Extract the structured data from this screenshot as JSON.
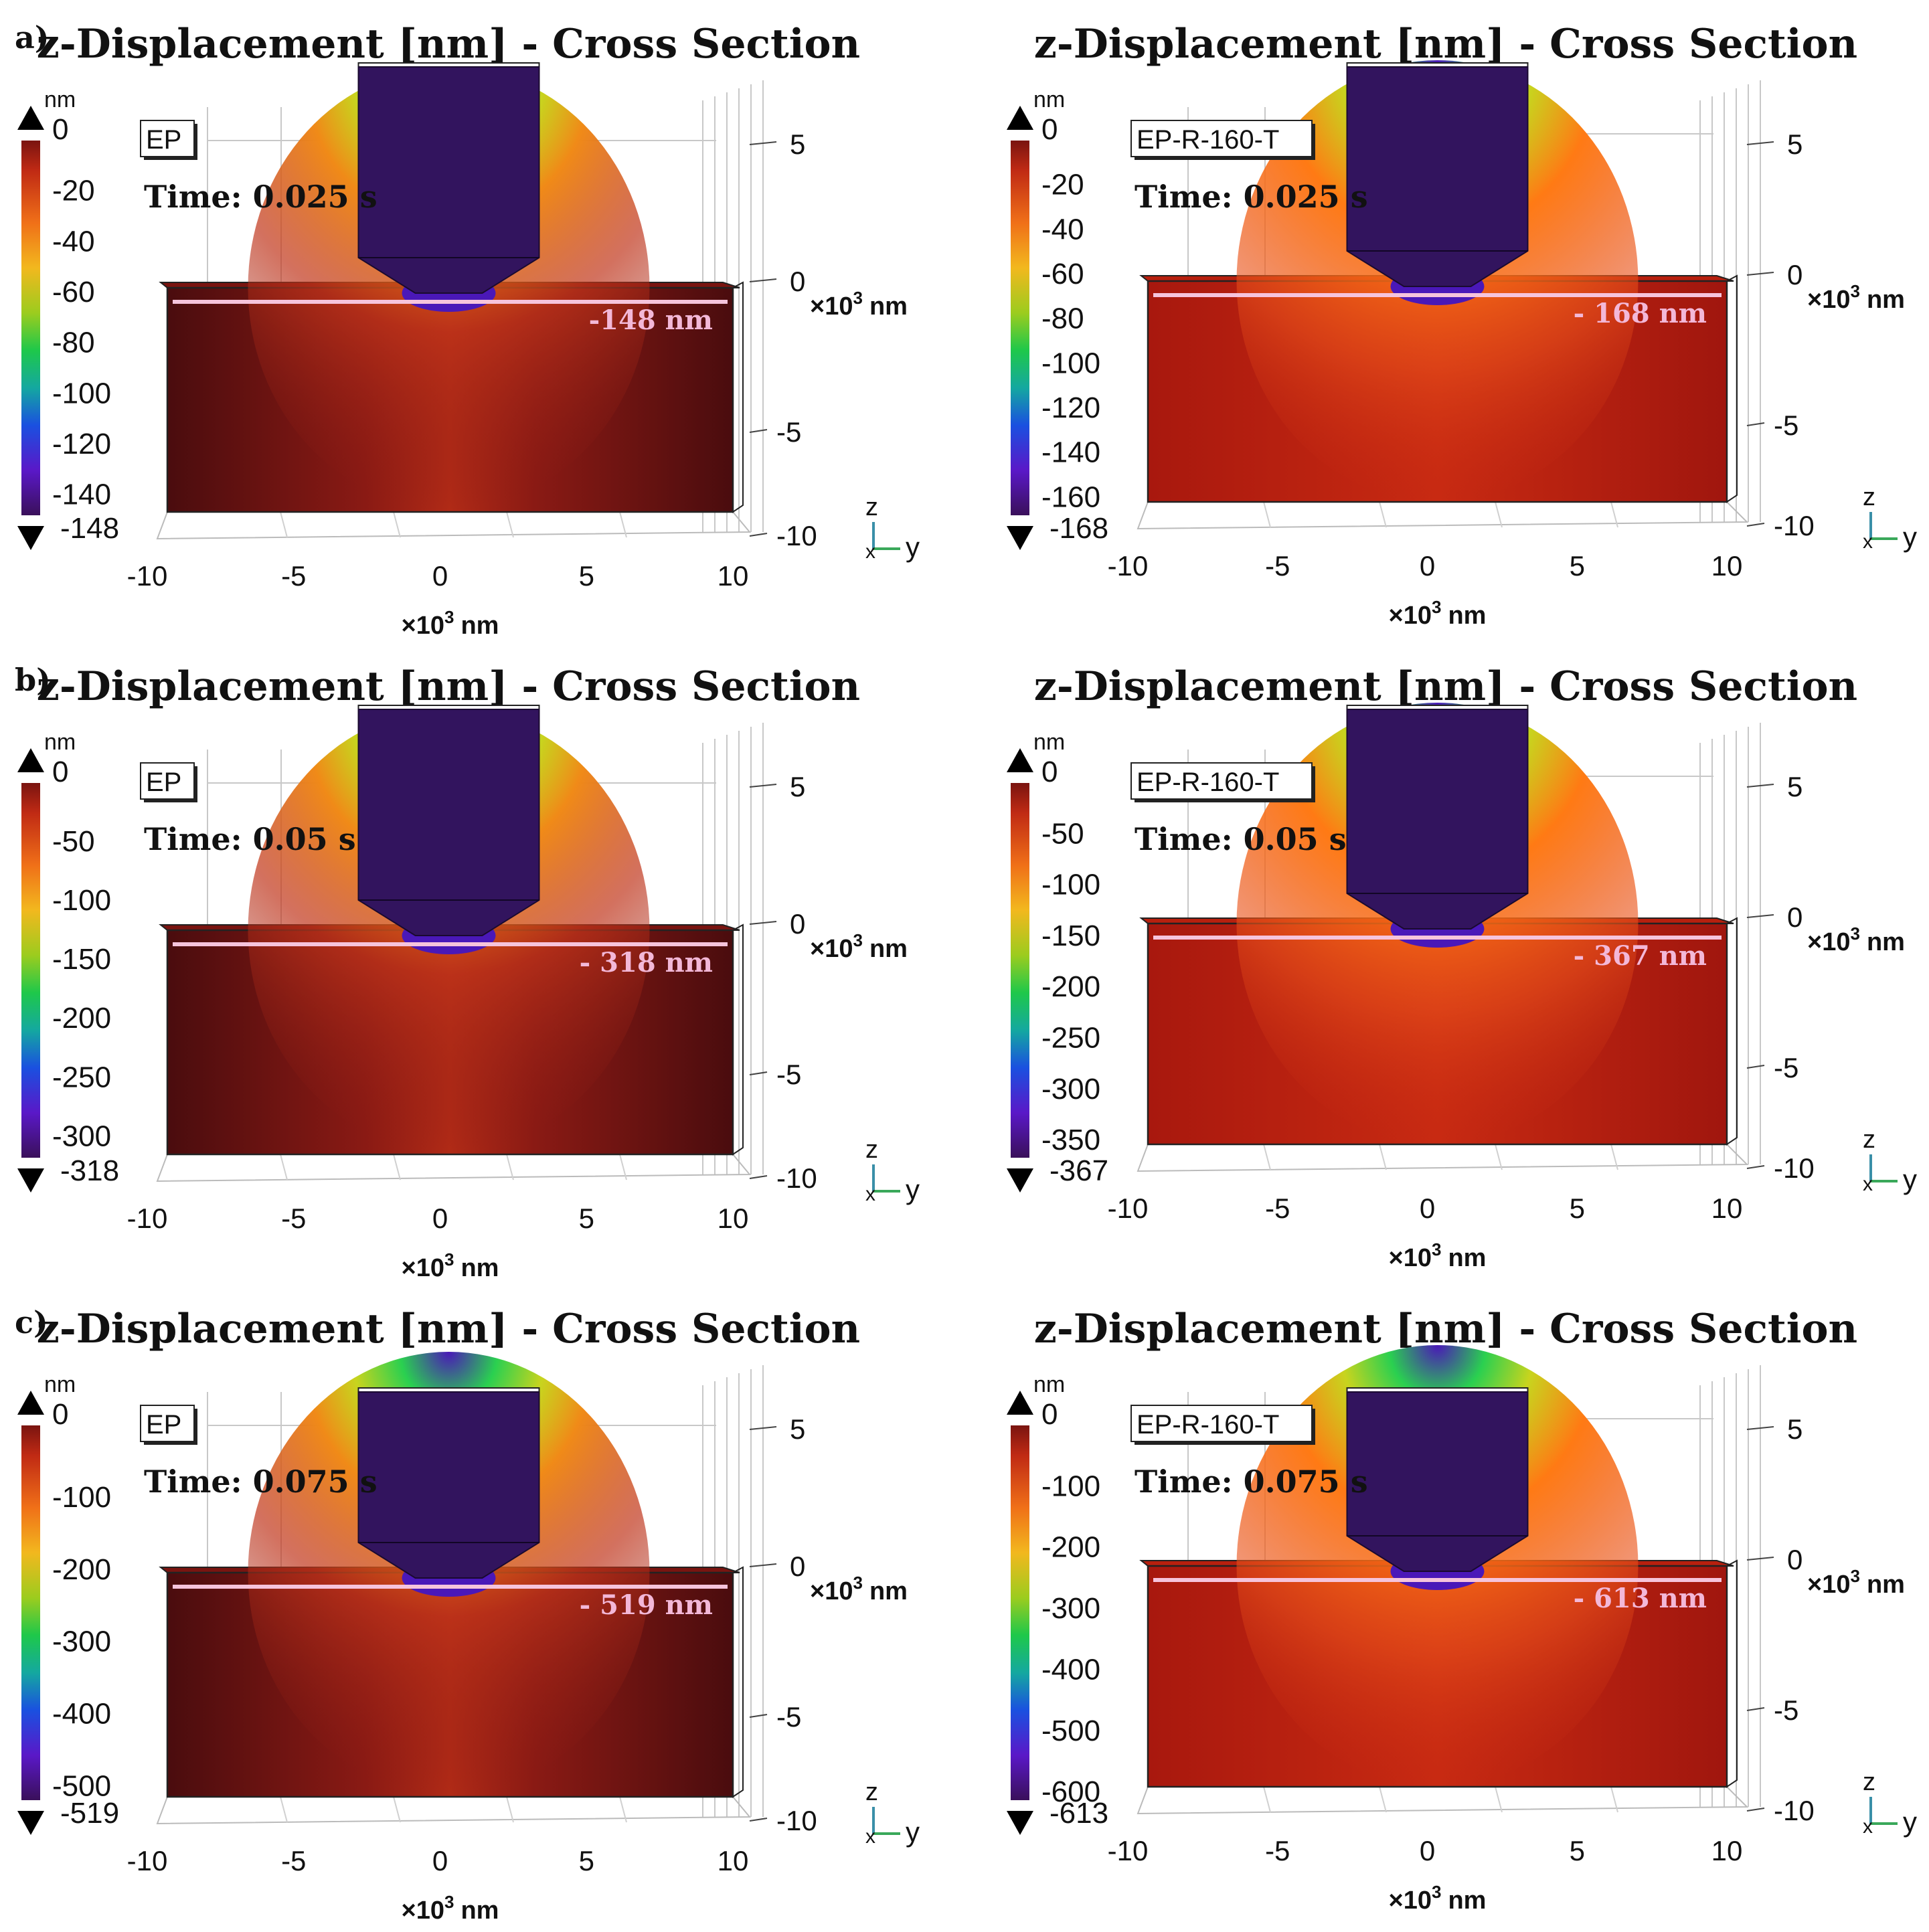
{
  "figure": {
    "rows": [
      {
        "label": "a)",
        "panels": [
          {
            "title": "z-Displacement [nm] - Cross Section",
            "sample": "EP",
            "time": "Time: 0.025 s",
            "displacement_label": "-148 nm",
            "colorbar": {
              "unit": "nm",
              "ticks": [
                "0",
                "-20",
                "-40",
                "-60",
                "-80",
                "-100",
                "-120",
                "-140"
              ],
              "max_label": "0",
              "min_label": "-148"
            },
            "z_ticks": [
              "5",
              "0",
              "-5",
              "-10"
            ],
            "y_ticks": [
              "-10",
              "-5",
              "0",
              "5",
              "10"
            ],
            "z_unit_prefix": "×10",
            "z_unit_exp": "3",
            "z_unit_suffix": "nm",
            "y_unit_prefix": "×10",
            "y_unit_exp": "3",
            "y_unit_suffix": "nm",
            "axes_triad": {
              "z": "z",
              "x": "x",
              "y": "y"
            }
          },
          {
            "title": "z-Displacement [nm] - Cross Section",
            "sample": "EP-R-160-T",
            "time": "Time: 0.025 s",
            "displacement_label": "- 168 nm",
            "colorbar": {
              "unit": "nm",
              "ticks": [
                "0",
                "-20",
                "-40",
                "-60",
                "-80",
                "-100",
                "-120",
                "-140",
                "-160"
              ],
              "max_label": "0",
              "min_label": "-168"
            },
            "z_ticks": [
              "5",
              "0",
              "-5",
              "-10"
            ],
            "y_ticks": [
              "-10",
              "-5",
              "0",
              "5",
              "10"
            ],
            "z_unit_prefix": "×10",
            "z_unit_exp": "3",
            "z_unit_suffix": "nm",
            "y_unit_prefix": "×10",
            "y_unit_exp": "3",
            "y_unit_suffix": "nm",
            "axes_triad": {
              "z": "z",
              "x": "x",
              "y": "y"
            }
          }
        ]
      },
      {
        "label": "b)",
        "panels": [
          {
            "title": "z-Displacement [nm] - Cross Section",
            "sample": "EP",
            "time": "Time: 0.05 s",
            "displacement_label": "- 318 nm",
            "colorbar": {
              "unit": "nm",
              "ticks": [
                "0",
                "-50",
                "-100",
                "-150",
                "-200",
                "-250",
                "-300"
              ],
              "max_label": "0",
              "min_label": "-318"
            },
            "z_ticks": [
              "5",
              "0",
              "-5",
              "-10"
            ],
            "y_ticks": [
              "-10",
              "-5",
              "0",
              "5",
              "10"
            ],
            "z_unit_prefix": "×10",
            "z_unit_exp": "3",
            "z_unit_suffix": "nm",
            "y_unit_prefix": "×10",
            "y_unit_exp": "3",
            "y_unit_suffix": "nm",
            "axes_triad": {
              "z": "z",
              "x": "x",
              "y": "y"
            }
          },
          {
            "title": "z-Displacement [nm] - Cross Section",
            "sample": "EP-R-160-T",
            "time": "Time: 0.05 s",
            "displacement_label": "- 367 nm",
            "colorbar": {
              "unit": "nm",
              "ticks": [
                "0",
                "-50",
                "-100",
                "-150",
                "-200",
                "-250",
                "-300",
                "-350"
              ],
              "max_label": "0",
              "min_label": "-367"
            },
            "z_ticks": [
              "5",
              "0",
              "-5",
              "-10"
            ],
            "y_ticks": [
              "-10",
              "-5",
              "0",
              "5",
              "10"
            ],
            "z_unit_prefix": "×10",
            "z_unit_exp": "3",
            "z_unit_suffix": "nm",
            "y_unit_prefix": "×10",
            "y_unit_exp": "3",
            "y_unit_suffix": "nm",
            "axes_triad": {
              "z": "z",
              "x": "x",
              "y": "y"
            }
          }
        ]
      },
      {
        "label": "c)",
        "panels": [
          {
            "title": "z-Displacement [nm] - Cross Section",
            "sample": "EP",
            "time": "Time: 0.075 s",
            "displacement_label": "- 519 nm",
            "colorbar": {
              "unit": "nm",
              "ticks": [
                "0",
                "-100",
                "-200",
                "-300",
                "-400",
                "-500"
              ],
              "max_label": "0",
              "min_label": "-519"
            },
            "z_ticks": [
              "5",
              "0",
              "-5",
              "-10"
            ],
            "y_ticks": [
              "-10",
              "-5",
              "0",
              "5",
              "10"
            ],
            "z_unit_prefix": "×10",
            "z_unit_exp": "3",
            "z_unit_suffix": "nm",
            "y_unit_prefix": "×10",
            "y_unit_exp": "3",
            "y_unit_suffix": "nm",
            "axes_triad": {
              "z": "z",
              "x": "x",
              "y": "y"
            }
          },
          {
            "title": "z-Displacement [nm] - Cross Section",
            "sample": "EP-R-160-T",
            "time": "Time: 0.075 s",
            "displacement_label": "- 613 nm",
            "colorbar": {
              "unit": "nm",
              "ticks": [
                "0",
                "-100",
                "-200",
                "-300",
                "-400",
                "-500",
                "-600"
              ],
              "max_label": "0",
              "min_label": "-613"
            },
            "z_ticks": [
              "5",
              "0",
              "-5",
              "-10"
            ],
            "y_ticks": [
              "-10",
              "-5",
              "0",
              "5",
              "10"
            ],
            "z_unit_prefix": "×10",
            "z_unit_exp": "3",
            "z_unit_suffix": "nm",
            "y_unit_prefix": "×10",
            "y_unit_exp": "3",
            "y_unit_suffix": "nm",
            "axes_triad": {
              "z": "z",
              "x": "x",
              "y": "y"
            }
          }
        ]
      }
    ]
  },
  "colors": {
    "indenter": "#32145e",
    "substrate_dark": "#5a0e10",
    "substrate_mid": "#a01812",
    "substrate_bright": "#ff6a12",
    "surface_line": "#f6c4dc",
    "triad_z": "#3a8fa8",
    "triad_y": "#3aa85a",
    "triad_x": "#c43a3a"
  }
}
